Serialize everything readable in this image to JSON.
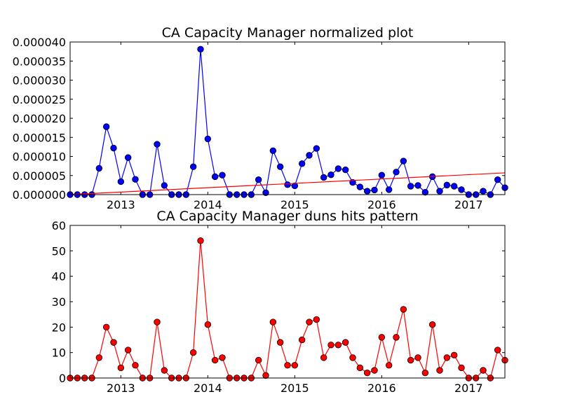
{
  "chart_data": [
    {
      "type": "line",
      "title": "CA Capacity Manager normalized plot",
      "xlabel": "",
      "ylabel": "",
      "x_ticks": [
        "2013",
        "2014",
        "2015",
        "2016",
        "2017"
      ],
      "y_ticks": [
        "0.000000",
        "0.000005",
        "0.000010",
        "0.000015",
        "0.000020",
        "0.000025",
        "0.000030",
        "0.000035",
        "0.000040"
      ],
      "ylim": [
        0,
        4e-05
      ],
      "xlim": [
        "2012-06",
        "2017-06"
      ],
      "grid": false,
      "colors": {
        "series": "#0000ff",
        "trend": "#ff0000"
      },
      "series": [
        {
          "x": [
            "2012-06",
            "2012-07",
            "2012-08",
            "2012-09",
            "2012-10",
            "2012-11",
            "2012-12",
            "2013-01",
            "2013-02",
            "2013-03",
            "2013-04",
            "2013-05",
            "2013-06",
            "2013-07",
            "2013-08",
            "2013-09",
            "2013-10",
            "2013-11",
            "2013-12",
            "2014-01",
            "2014-02",
            "2014-03",
            "2014-04",
            "2014-05",
            "2014-06",
            "2014-07",
            "2014-08",
            "2014-09",
            "2014-10",
            "2014-11",
            "2014-12",
            "2015-01",
            "2015-02",
            "2015-03",
            "2015-04",
            "2015-05",
            "2015-06",
            "2015-07",
            "2015-08",
            "2015-09",
            "2015-10",
            "2015-11",
            "2015-12",
            "2016-01",
            "2016-02",
            "2016-03",
            "2016-04",
            "2016-05",
            "2016-06",
            "2016-07",
            "2016-08",
            "2016-09",
            "2016-10",
            "2016-11",
            "2016-12",
            "2017-01",
            "2017-02",
            "2017-03",
            "2017-04",
            "2017-05",
            "2017-06"
          ],
          "values": [
            0,
            0,
            0,
            0,
            6.9e-06,
            1.78e-05,
            1.22e-05,
            3.4e-06,
            9.7e-06,
            4e-06,
            0,
            0,
            1.32e-05,
            2.4e-06,
            0,
            0,
            0,
            7.3e-06,
            3.81e-05,
            1.46e-05,
            4.7e-06,
            5.1e-06,
            0,
            0,
            0,
            0,
            3.9e-06,
            5e-07,
            1.15e-05,
            7.3e-06,
            2.6e-06,
            2.3e-06,
            8.1e-06,
            1.03e-05,
            1.21e-05,
            4.5e-06,
            5.2e-06,
            6.8e-06,
            6.5e-06,
            3.2e-06,
            2e-06,
            9e-07,
            1.2e-06,
            5.1e-06,
            1.3e-06,
            5.9e-06,
            8.8e-06,
            2.2e-06,
            2.4e-06,
            6e-07,
            4.7e-06,
            9e-07,
            2.5e-06,
            2.2e-06,
            1.3e-06,
            0,
            0,
            9e-07,
            0,
            3.9e-06,
            1.8e-06
          ]
        },
        {
          "x": [
            "2012-06",
            "2017-06"
          ],
          "values": [
            0,
            5.7e-06
          ]
        }
      ]
    },
    {
      "type": "line",
      "title": "CA Capacity Manager duns hits pattern",
      "xlabel": "",
      "ylabel": "",
      "x_ticks": [
        "2013",
        "2014",
        "2015",
        "2016",
        "2017"
      ],
      "y_ticks": [
        "0",
        "10",
        "20",
        "30",
        "40",
        "50",
        "60"
      ],
      "ylim": [
        0,
        60
      ],
      "xlim": [
        "2012-06",
        "2017-06"
      ],
      "grid": false,
      "colors": {
        "series": "#ff0000"
      },
      "series": [
        {
          "x": [
            "2012-06",
            "2012-07",
            "2012-08",
            "2012-09",
            "2012-10",
            "2012-11",
            "2012-12",
            "2013-01",
            "2013-02",
            "2013-03",
            "2013-04",
            "2013-05",
            "2013-06",
            "2013-07",
            "2013-08",
            "2013-09",
            "2013-10",
            "2013-11",
            "2013-12",
            "2014-01",
            "2014-02",
            "2014-03",
            "2014-04",
            "2014-05",
            "2014-06",
            "2014-07",
            "2014-08",
            "2014-09",
            "2014-10",
            "2014-11",
            "2014-12",
            "2015-01",
            "2015-02",
            "2015-03",
            "2015-04",
            "2015-05",
            "2015-06",
            "2015-07",
            "2015-08",
            "2015-09",
            "2015-10",
            "2015-11",
            "2015-12",
            "2016-01",
            "2016-02",
            "2016-03",
            "2016-04",
            "2016-05",
            "2016-06",
            "2016-07",
            "2016-08",
            "2016-09",
            "2016-10",
            "2016-11",
            "2016-12",
            "2017-01",
            "2017-02",
            "2017-03",
            "2017-04",
            "2017-05",
            "2017-06"
          ],
          "values": [
            0,
            0,
            0,
            0,
            8,
            20,
            14,
            4,
            11,
            5,
            0,
            0,
            22,
            3,
            0,
            0,
            0,
            10,
            54,
            21,
            7,
            8,
            0,
            0,
            0,
            0,
            7,
            1,
            22,
            14,
            5,
            5,
            15,
            22,
            23,
            8,
            13,
            13,
            14,
            8,
            4,
            2,
            3,
            16,
            5,
            16,
            27,
            7,
            8,
            2,
            21,
            3,
            8,
            9,
            4,
            0,
            0,
            3,
            0,
            11,
            7
          ]
        }
      ]
    }
  ]
}
